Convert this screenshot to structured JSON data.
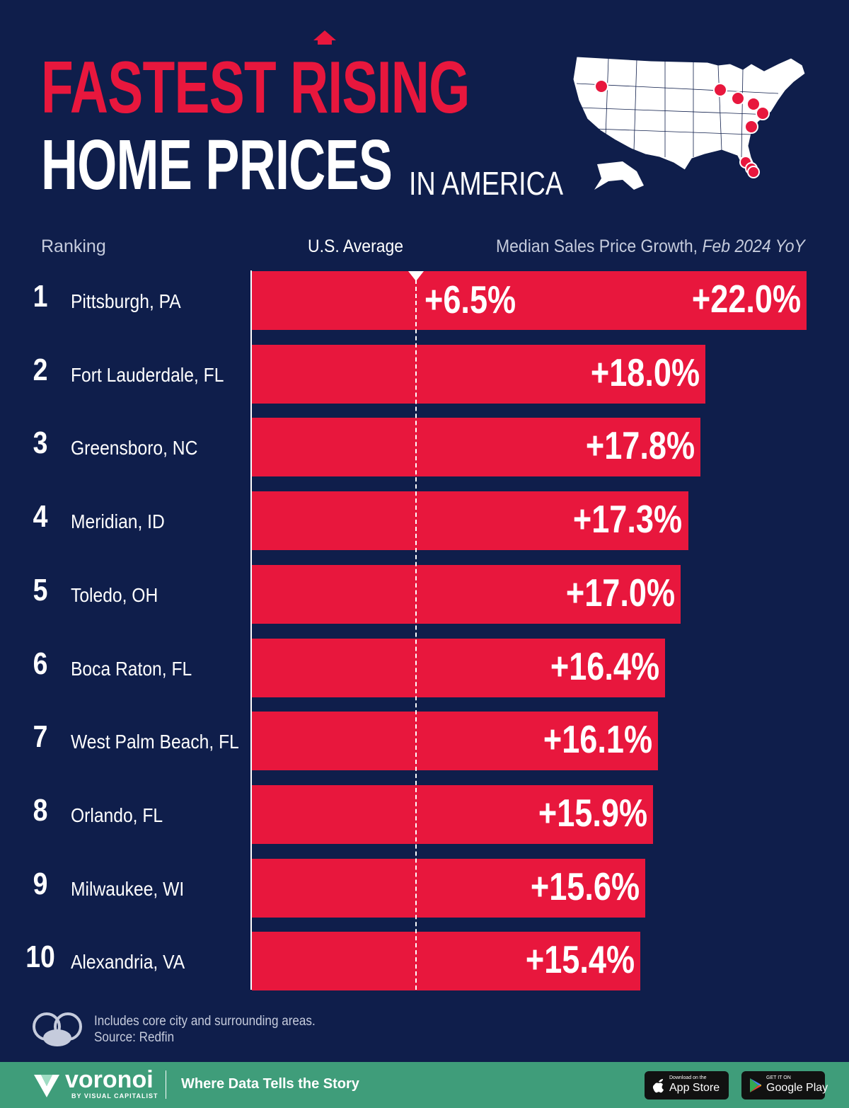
{
  "header": {
    "title_line1": "FASTEST RISING",
    "title_line2": "HOME PRICES",
    "title_suffix": "IN AMERICA"
  },
  "column_headers": {
    "ranking": "Ranking",
    "average": "U.S. Average",
    "metric": "Median Sales Price Growth,",
    "metric_period": "Feb 2024 YoY"
  },
  "chart_data": {
    "type": "bar",
    "orientation": "horizontal",
    "categories": [
      "Pittsburgh, PA",
      "Fort Lauderdale, FL",
      "Greensboro, NC",
      "Meridian, ID",
      "Toledo, OH",
      "Boca Raton, FL",
      "West Palm Beach, FL",
      "Orlando, FL",
      "Milwaukee, WI",
      "Alexandria, VA"
    ],
    "ranks": [
      "1",
      "2",
      "3",
      "4",
      "5",
      "6",
      "7",
      "8",
      "9",
      "10"
    ],
    "values": [
      22.0,
      18.0,
      17.8,
      17.3,
      17.0,
      16.4,
      16.1,
      15.9,
      15.6,
      15.4
    ],
    "value_labels": [
      "+22.0%",
      "+18.0%",
      "+17.8%",
      "+17.3%",
      "+17.0%",
      "+16.4%",
      "+16.1%",
      "+15.9%",
      "+15.6%",
      "+15.4%"
    ],
    "reference": {
      "name": "U.S. Average",
      "value": 6.5,
      "label": "+6.5%"
    },
    "xlim": [
      0,
      22.0
    ],
    "bar_color": "#e8173d"
  },
  "footer": {
    "note": "Includes core city and surrounding areas.",
    "source": "Source: Redfin",
    "brand": "voronoi",
    "brand_sub": "BY VISUAL CAPITALIST",
    "tagline": "Where Data Tells the Story",
    "app_store_small": "Download on the",
    "app_store_big": "App Store",
    "google_small": "GET IT ON",
    "google_big": "Google Play"
  },
  "colors": {
    "background": "#0f1e4b",
    "accent_red": "#e8173d",
    "footer_green": "#3f9d7a"
  }
}
